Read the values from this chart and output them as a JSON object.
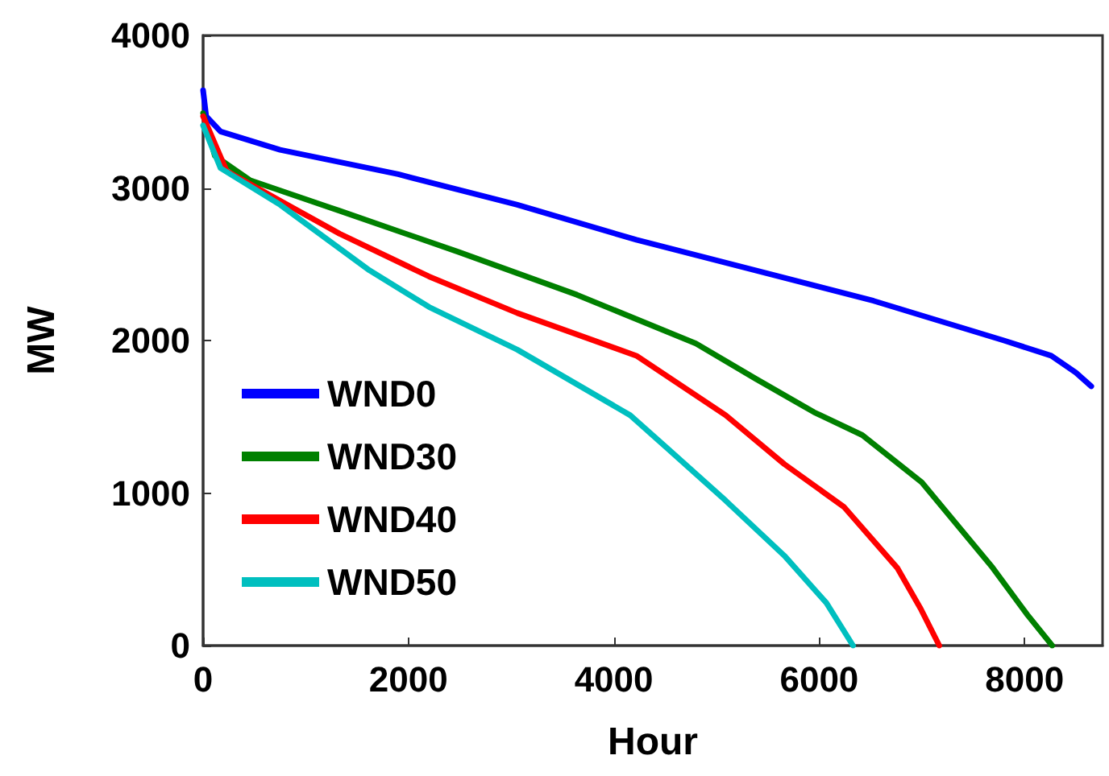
{
  "chart_data": {
    "type": "line",
    "xlabel": "Hour",
    "ylabel": "MW",
    "xlim": [
      0,
      8760
    ],
    "ylim": [
      0,
      4000
    ],
    "xticks": [
      0,
      2000,
      4000,
      6000,
      8000
    ],
    "yticks": [
      0,
      1000,
      2000,
      3000,
      4000
    ],
    "grid": false,
    "legend": "bottom left",
    "marker": "none",
    "line_style": "solid",
    "series": [
      {
        "name": "WND0",
        "color": "#0000ff",
        "x": [
          0,
          30,
          170,
          750,
          1900,
          3060,
          4220,
          5380,
          6530,
          7800,
          8260,
          8500,
          8650
        ],
        "values": [
          3640,
          3470,
          3370,
          3250,
          3090,
          2890,
          2660,
          2460,
          2260,
          2000,
          1900,
          1790,
          1700
        ]
      },
      {
        "name": "WND30",
        "color": "#008000",
        "x": [
          0,
          115,
          460,
          1330,
          2490,
          3640,
          4800,
          5380,
          5950,
          6420,
          7000,
          7690,
          8030,
          8270
        ],
        "values": [
          3490,
          3210,
          3050,
          2850,
          2580,
          2300,
          1980,
          1750,
          1530,
          1380,
          1070,
          510,
          200,
          0
        ]
      },
      {
        "name": "WND40",
        "color": "#ff0000",
        "x": [
          0,
          230,
          1330,
          2200,
          3060,
          4220,
          5090,
          5660,
          6240,
          6760,
          6990,
          7170
        ],
        "values": [
          3470,
          3110,
          2700,
          2420,
          2180,
          1900,
          1510,
          1190,
          910,
          510,
          240,
          0
        ]
      },
      {
        "name": "WND50",
        "color": "#00bfbf",
        "x": [
          0,
          170,
          750,
          1620,
          2200,
          3060,
          4160,
          4510,
          5090,
          5660,
          6070,
          6330
        ],
        "values": [
          3410,
          3130,
          2890,
          2460,
          2220,
          1940,
          1510,
          1300,
          950,
          590,
          280,
          0
        ]
      }
    ]
  }
}
